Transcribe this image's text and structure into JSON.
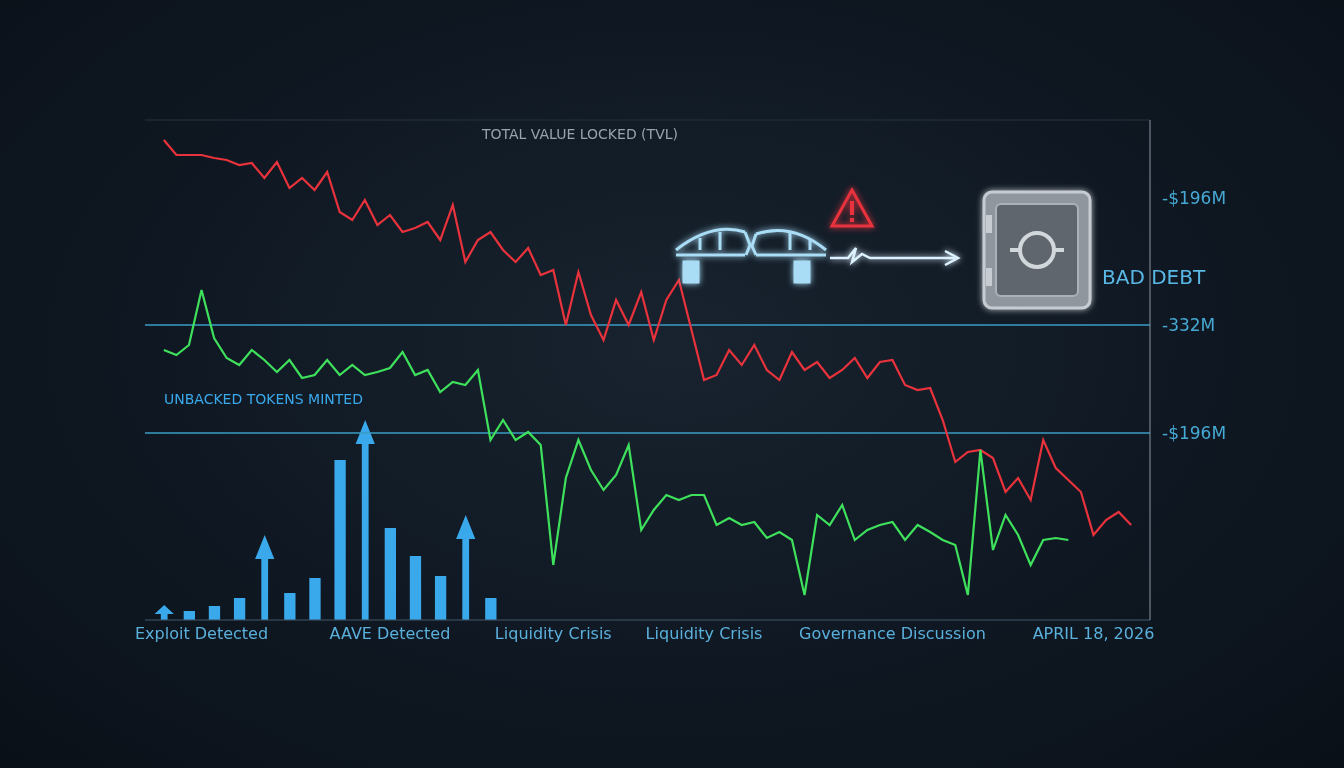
{
  "chart_data": {
    "type": "line",
    "title": "TOTAL VALUE LOCKED (TVL)",
    "callout": "BAD DEBT",
    "categories": [
      null,
      null,
      null,
      null,
      "Exploit Detected",
      null,
      null,
      null,
      null,
      null,
      null,
      null,
      null,
      null,
      null,
      null,
      null,
      null,
      null,
      "AAVE Detected",
      null,
      null,
      null,
      null,
      null,
      null,
      null,
      null,
      null,
      null,
      null,
      null,
      "Liquidity Crisis",
      null,
      null,
      null,
      null,
      null,
      null,
      null,
      null,
      null,
      null,
      null,
      "Liquidity Crisis",
      null,
      null,
      null,
      null,
      null,
      null,
      null,
      null,
      null,
      null,
      null,
      null,
      null,
      null,
      "Governance Discussion",
      null,
      null,
      null,
      null,
      null,
      null,
      null,
      null,
      null,
      null,
      null,
      null,
      null,
      null,
      null,
      "APRIL 18, 2026",
      null,
      null,
      null,
      null
    ],
    "series": [
      {
        "type": "line",
        "color": "#e8323c",
        "values": [
          null,
          96,
          93,
          93,
          93,
          92.4,
          92,
          91,
          91.4,
          88.4,
          91.6,
          86.4,
          88.4,
          86,
          89.6,
          81.6,
          80,
          84,
          79,
          81,
          77.6,
          78.4,
          79.6,
          76,
          83,
          71.6,
          76,
          77.6,
          74,
          71.6,
          74.4,
          69,
          70,
          59,
          69.6,
          61,
          56,
          64,
          59,
          65.6,
          56,
          64,
          68,
          58,
          48,
          49,
          54,
          51,
          55,
          50,
          48,
          53.6,
          50,
          51.6,
          48.4,
          50,
          52.4,
          48.4,
          51.6,
          52,
          47,
          46,
          46.4,
          40,
          31.6,
          33.6,
          34,
          32.4,
          25.6,
          28.4,
          24,
          36,
          30.4,
          28,
          25.6,
          17,
          20,
          21.6,
          19,
          null
        ]
      },
      {
        "type": "line",
        "color": "#3ee05c",
        "values": [
          null,
          54,
          53,
          55,
          66,
          56.4,
          52.4,
          51,
          54,
          52,
          49.6,
          52,
          48.4,
          49,
          52,
          49,
          51,
          49,
          49.6,
          50.4,
          53.6,
          49,
          50,
          45.6,
          47.6,
          47,
          50,
          36,
          40,
          36,
          37.6,
          35,
          11,
          28.4,
          36,
          30,
          26,
          29,
          35,
          18,
          22,
          25,
          24,
          25,
          25,
          19,
          20.4,
          19,
          19.6,
          16.4,
          17.6,
          16,
          5,
          21,
          19,
          23,
          16,
          18,
          19,
          19.6,
          16,
          19,
          17.6,
          16,
          15,
          5,
          34,
          14,
          21,
          17,
          11,
          16,
          16.4,
          16,
          null,
          null,
          null,
          null,
          null,
          null
        ]
      },
      {
        "type": "bar",
        "name": "UNBACKED TOKENS MINTED",
        "color": "#3aa9ec",
        "marker": "arrow",
        "values": [
          null,
          3,
          null,
          1.8,
          null,
          2.8,
          null,
          4.4,
          null,
          17,
          null,
          5.4,
          null,
          8.4,
          null,
          32,
          null,
          40,
          null,
          18.4,
          null,
          12.8,
          null,
          8.8,
          null,
          21,
          null,
          4.4,
          null,
          null,
          null,
          null,
          null,
          null,
          null,
          null,
          null,
          null,
          null,
          null,
          null,
          null,
          null,
          null,
          null,
          null,
          null,
          null,
          null,
          null,
          null,
          null,
          null,
          null,
          null,
          null,
          null,
          null,
          null,
          null,
          null,
          null,
          null,
          null,
          null,
          null,
          null,
          null,
          null,
          null,
          null,
          null,
          null,
          null,
          null,
          null,
          null,
          null,
          null,
          null
        ]
      }
    ],
    "annotations": [
      {
        "text": "-$196M",
        "y": 84.4,
        "line_style": "none"
      },
      {
        "text": "-332M",
        "y": 59,
        "line_style": "solid"
      },
      {
        "text": "-$196M",
        "y": 37.4,
        "line_style": "solid"
      }
    ],
    "ylim": [
      0,
      100
    ],
    "yticks": [
      0,
      20,
      40,
      60,
      80,
      100
    ],
    "grid": true,
    "tick_labels": "x"
  }
}
